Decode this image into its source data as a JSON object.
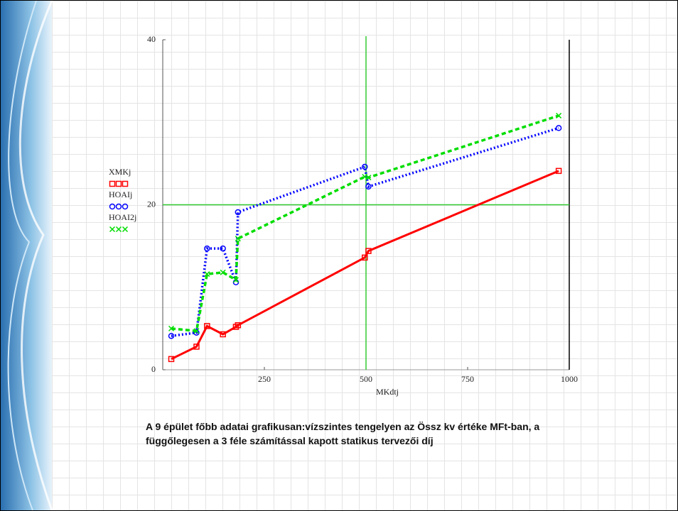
{
  "chart_data": {
    "type": "line",
    "xlabel": "MKdtj",
    "x": [
      21,
      83,
      109,
      148,
      180,
      185,
      497,
      506,
      974
    ],
    "series": [
      {
        "name": "XMKj",
        "color": "#ff0000",
        "dash": "solid",
        "marker": "square",
        "values": [
          1.3,
          2.8,
          5.3,
          4.3,
          5.2,
          5.4,
          13.6,
          14.4,
          24.1
        ]
      },
      {
        "name": "HOAIj",
        "color": "#0000ff",
        "dash": "dotted",
        "marker": "circle",
        "values": [
          4.1,
          4.5,
          14.7,
          14.7,
          10.6,
          19.1,
          24.6,
          22.2,
          29.3
        ]
      },
      {
        "name": "HOAI2j",
        "color": "#00dd00",
        "dash": "dashed",
        "marker": "cross",
        "values": [
          5.0,
          4.7,
          11.6,
          11.8,
          10.9,
          15.9,
          23.4,
          23.3,
          30.8
        ]
      }
    ],
    "xlim": [
      0,
      1000
    ],
    "ylim": [
      0,
      40
    ],
    "xticks": [
      250,
      500,
      750,
      1000
    ],
    "yticks": [
      0,
      20,
      40
    ],
    "crosshair": {
      "x": 500,
      "y": 20,
      "color": "#33cc33"
    }
  },
  "caption": "A 9 épület főbb adatai grafikusan:vízszintes tengelyen az Össz kv értéke MFt-ban, a függőlegesen a 3 féle számítással kapott statikus tervezői díj"
}
